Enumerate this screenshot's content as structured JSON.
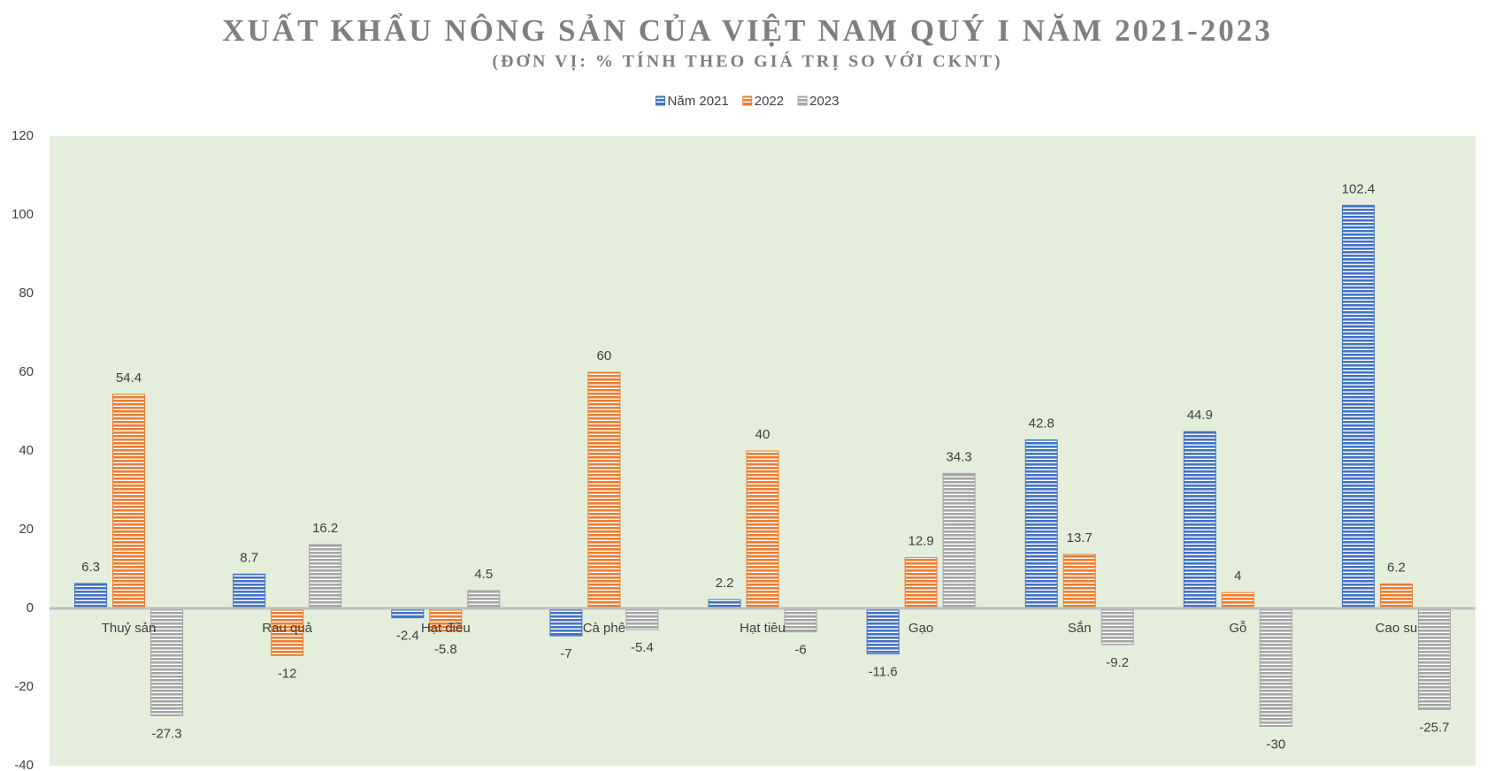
{
  "chart_data": {
    "type": "bar",
    "title": "XUẤT KHẨU NÔNG SẢN CỦA VIỆT NAM QUÝ I NĂM 2021-2023",
    "subtitle": "(ĐƠN VỊ: % TÍNH THEO GIÁ TRỊ SO VỚI CKNT)",
    "categories": [
      "Thuỷ sản",
      "Rau quả",
      "Hạt điều",
      "Cà phê",
      "Hạt tiêu",
      "Gạo",
      "Sắn",
      "Gỗ",
      "Cao su"
    ],
    "series": [
      {
        "name": "Năm 2021",
        "color": "#4472c4",
        "values": [
          6.3,
          8.7,
          -2.4,
          -7,
          2.2,
          -11.6,
          42.8,
          44.9,
          102.4
        ]
      },
      {
        "name": "2022",
        "color": "#ed7d31",
        "values": [
          54.4,
          -12,
          -5.8,
          60,
          40,
          12.9,
          13.7,
          4,
          6.2
        ]
      },
      {
        "name": "2023",
        "color": "#a5a5a5",
        "values": [
          -27.3,
          16.2,
          4.5,
          -5.4,
          -6,
          34.3,
          -9.2,
          -30,
          -25.7
        ]
      }
    ],
    "ylim": [
      -40,
      120
    ],
    "yticks": [
      -40,
      -20,
      0,
      20,
      40,
      60,
      80,
      100,
      120
    ],
    "grid": false,
    "legend": "top"
  }
}
